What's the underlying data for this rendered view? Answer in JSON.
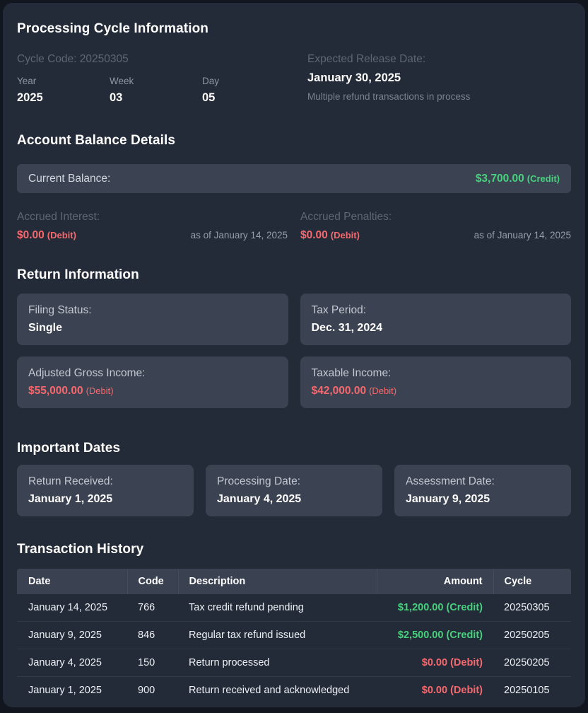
{
  "theme": {
    "outer_bg": "#12161e",
    "panel_bg": "#242b38",
    "card_bg": "#3b4352",
    "table_header_bg": "#3a4151",
    "credit_green": "#46d27c",
    "debit_red": "#f5696e"
  },
  "processing_cycle": {
    "title": "Processing Cycle Information",
    "cycle_code_label": "Cycle Code: 20250305",
    "fields": [
      {
        "label": "Year",
        "value": "2025"
      },
      {
        "label": "Week",
        "value": "03"
      },
      {
        "label": "Day",
        "value": "05"
      }
    ],
    "expected_release": {
      "label": "Expected Release Date:",
      "date": "January 30, 2025",
      "note": "Multiple refund transactions in process"
    }
  },
  "account_balance": {
    "title": "Account Balance Details",
    "current_balance": {
      "label": "Current Balance:",
      "amount": "$3,700.00",
      "suffix": "(Credit)"
    },
    "accruals": [
      {
        "label": "Accrued Interest:",
        "amount": "$0.00",
        "suffix": "(Debit)",
        "as_of": "as of January 14, 2025"
      },
      {
        "label": "Accrued Penalties:",
        "amount": "$0.00",
        "suffix": "(Debit)",
        "as_of": "as of January 14, 2025"
      }
    ]
  },
  "return_information": {
    "title": "Return Information",
    "cards": [
      {
        "label": "Filing Status:",
        "value": "Single",
        "type": "plain"
      },
      {
        "label": "Tax Period:",
        "value": "Dec. 31, 2024",
        "type": "plain"
      },
      {
        "label": "Adjusted Gross Income:",
        "value": "$55,000.00",
        "suffix": "(Debit)",
        "type": "debit"
      },
      {
        "label": "Taxable Income:",
        "value": "$42,000.00",
        "suffix": "(Debit)",
        "type": "debit"
      }
    ]
  },
  "important_dates": {
    "title": "Important Dates",
    "cards": [
      {
        "label": "Return Received:",
        "value": "January 1, 2025"
      },
      {
        "label": "Processing Date:",
        "value": "January 4, 2025"
      },
      {
        "label": "Assessment Date:",
        "value": "January 9, 2025"
      }
    ]
  },
  "transaction_history": {
    "title": "Transaction History",
    "columns": [
      "Date",
      "Code",
      "Description",
      "Amount",
      "Cycle"
    ],
    "rows": [
      {
        "date": "January 14, 2025",
        "code": "766",
        "description": "Tax credit refund pending",
        "amount": "$1,200.00 (Credit)",
        "amount_type": "credit",
        "cycle": "20250305"
      },
      {
        "date": "January 9, 2025",
        "code": "846",
        "description": "Regular tax refund issued",
        "amount": "$2,500.00 (Credit)",
        "amount_type": "credit",
        "cycle": "20250205"
      },
      {
        "date": "January 4, 2025",
        "code": "150",
        "description": "Return processed",
        "amount": "$0.00 (Debit)",
        "amount_type": "debit",
        "cycle": "20250205"
      },
      {
        "date": "January 1, 2025",
        "code": "900",
        "description": "Return received and acknowledged",
        "amount": "$0.00 (Debit)",
        "amount_type": "debit",
        "cycle": "20250105"
      }
    ]
  }
}
